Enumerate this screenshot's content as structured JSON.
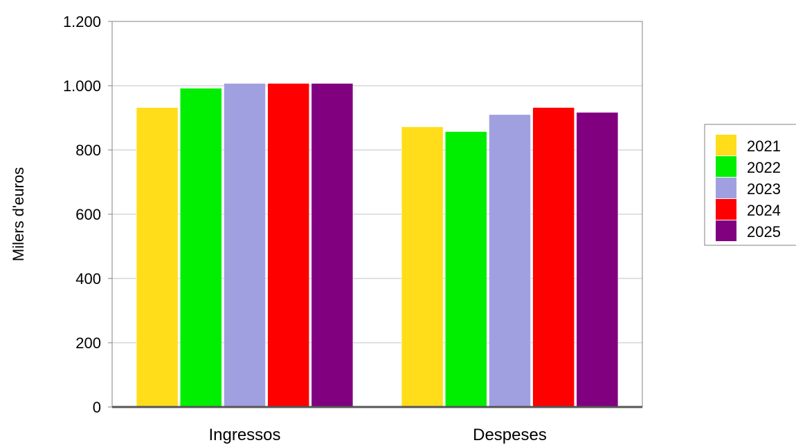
{
  "chart_data": {
    "type": "bar",
    "title": "",
    "xlabel": "",
    "ylabel": "Milers d'euros",
    "categories": [
      "Ingressos",
      "Despeses"
    ],
    "series": [
      {
        "name": "2021",
        "color": "#FFDD1A",
        "values": [
          932,
          872
        ]
      },
      {
        "name": "2022",
        "color": "#00EE00",
        "values": [
          992,
          857
        ]
      },
      {
        "name": "2023",
        "color": "#A0A0E0",
        "values": [
          1007,
          910
        ]
      },
      {
        "name": "2024",
        "color": "#FF0000",
        "values": [
          1007,
          932
        ]
      },
      {
        "name": "2025",
        "color": "#800080",
        "values": [
          1007,
          917
        ]
      }
    ],
    "ylim": [
      0,
      1200
    ],
    "yticks": [
      0,
      200,
      400,
      600,
      800,
      1000,
      1200
    ],
    "ytick_labels": [
      "0",
      "200",
      "400",
      "600",
      "800",
      "1.000",
      "1.200"
    ],
    "grid": true,
    "legend_position": "right"
  }
}
